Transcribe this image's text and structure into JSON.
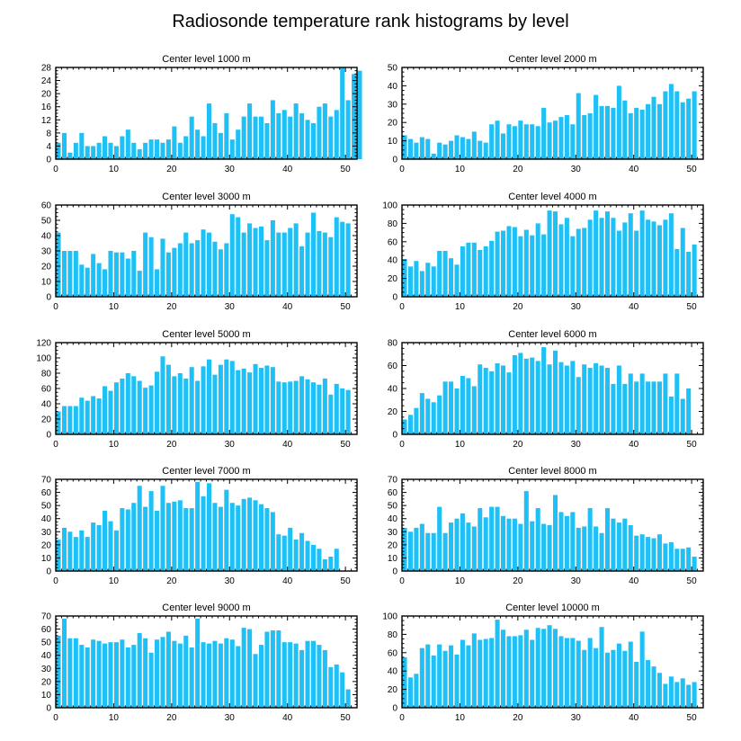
{
  "figure_title": "Radiosonde temperature rank histograms by level",
  "bar_color": "#1ec0f5",
  "chart_data": [
    {
      "type": "bar",
      "title": "Center level 1000 m",
      "xlim": [
        0,
        52
      ],
      "ylim": [
        0,
        28
      ],
      "xticks": [
        0,
        10,
        20,
        30,
        40,
        50
      ],
      "yticks": [
        0,
        4,
        8,
        12,
        16,
        20,
        24,
        28
      ],
      "values": [
        5,
        8,
        2,
        5,
        8,
        4,
        4,
        5,
        7,
        5,
        4,
        7,
        9,
        5,
        3,
        5,
        6,
        6,
        5,
        6,
        10,
        5,
        7,
        13,
        9,
        7,
        17,
        11,
        8,
        14,
        6,
        9,
        13,
        17,
        13,
        13,
        11,
        18,
        14,
        15,
        13,
        17,
        14,
        12,
        11,
        16,
        17,
        13,
        15,
        28,
        18,
        26,
        27
      ]
    },
    {
      "type": "bar",
      "title": "Center level 2000 m",
      "xlim": [
        0,
        52
      ],
      "ylim": [
        0,
        50
      ],
      "xticks": [
        0,
        10,
        20,
        30,
        40,
        50
      ],
      "yticks": [
        0,
        10,
        20,
        30,
        40,
        50
      ],
      "values": [
        13,
        11,
        9,
        12,
        11,
        3,
        9,
        8,
        10,
        13,
        12,
        11,
        15,
        10,
        9,
        19,
        21,
        14,
        19,
        18,
        21,
        19,
        19,
        18,
        28,
        20,
        21,
        23,
        24,
        19,
        36,
        24,
        25,
        35,
        29,
        29,
        28,
        40,
        32,
        25,
        28,
        27,
        30,
        34,
        30,
        37,
        41,
        37,
        31,
        33,
        37
      ]
    },
    {
      "type": "bar",
      "title": "Center level 3000 m",
      "xlim": [
        0,
        52
      ],
      "ylim": [
        0,
        60
      ],
      "xticks": [
        0,
        10,
        20,
        30,
        40,
        50
      ],
      "yticks": [
        0,
        10,
        20,
        30,
        40,
        50,
        60
      ],
      "values": [
        42,
        30,
        30,
        30,
        21,
        19,
        28,
        22,
        18,
        30,
        29,
        29,
        25,
        30,
        17,
        42,
        39,
        18,
        38,
        29,
        32,
        35,
        42,
        35,
        37,
        44,
        42,
        36,
        31,
        35,
        54,
        52,
        42,
        48,
        45,
        46,
        37,
        50,
        42,
        42,
        45,
        48,
        33,
        42,
        55,
        43,
        42,
        39,
        52,
        49,
        48
      ]
    },
    {
      "type": "bar",
      "title": "Center level 4000 m",
      "xlim": [
        0,
        52
      ],
      "ylim": [
        0,
        100
      ],
      "xticks": [
        0,
        10,
        20,
        30,
        40,
        50
      ],
      "yticks": [
        0,
        20,
        40,
        60,
        80,
        100
      ],
      "values": [
        41,
        33,
        39,
        28,
        37,
        33,
        50,
        50,
        42,
        35,
        55,
        59,
        59,
        51,
        55,
        61,
        71,
        72,
        77,
        76,
        66,
        73,
        67,
        80,
        68,
        94,
        93,
        79,
        86,
        66,
        74,
        75,
        84,
        94,
        86,
        93,
        86,
        72,
        81,
        91,
        72,
        94,
        84,
        82,
        78,
        84,
        91,
        52,
        75,
        49,
        57
      ]
    },
    {
      "type": "bar",
      "title": "Center level 5000 m",
      "xlim": [
        0,
        52
      ],
      "ylim": [
        0,
        120
      ],
      "xticks": [
        0,
        10,
        20,
        30,
        40,
        50
      ],
      "yticks": [
        0,
        20,
        40,
        60,
        80,
        100,
        120
      ],
      "values": [
        30,
        37,
        37,
        37,
        48,
        44,
        50,
        47,
        63,
        57,
        68,
        73,
        80,
        76,
        70,
        61,
        64,
        82,
        102,
        91,
        76,
        80,
        73,
        88,
        70,
        89,
        98,
        78,
        91,
        98,
        96,
        84,
        86,
        81,
        92,
        87,
        90,
        88,
        69,
        68,
        69,
        70,
        76,
        72,
        68,
        65,
        73,
        52,
        66,
        60,
        58
      ]
    },
    {
      "type": "bar",
      "title": "Center level 6000 m",
      "xlim": [
        0,
        52
      ],
      "ylim": [
        0,
        80
      ],
      "xticks": [
        0,
        10,
        20,
        30,
        40,
        50
      ],
      "yticks": [
        0,
        20,
        40,
        60,
        80
      ],
      "values": [
        13,
        17,
        23,
        36,
        31,
        28,
        34,
        46,
        46,
        40,
        51,
        49,
        42,
        61,
        58,
        55,
        62,
        60,
        54,
        69,
        71,
        66,
        67,
        64,
        76,
        61,
        73,
        63,
        60,
        64,
        50,
        61,
        58,
        62,
        60,
        58,
        44,
        60,
        44,
        53,
        46,
        53,
        46,
        46,
        46,
        53,
        33,
        53,
        31,
        40
      ]
    },
    {
      "type": "bar",
      "title": "Center level 7000 m",
      "xlim": [
        0,
        52
      ],
      "ylim": [
        0,
        70
      ],
      "xticks": [
        0,
        10,
        20,
        30,
        40,
        50
      ],
      "yticks": [
        0,
        10,
        20,
        30,
        40,
        50,
        60,
        70
      ],
      "values": [
        24,
        33,
        30,
        26,
        31,
        26,
        37,
        35,
        46,
        38,
        31,
        48,
        47,
        52,
        65,
        49,
        61,
        46,
        65,
        52,
        53,
        54,
        48,
        48,
        68,
        57,
        67,
        52,
        49,
        62,
        52,
        50,
        55,
        56,
        54,
        51,
        48,
        45,
        28,
        27,
        33,
        24,
        29,
        23,
        20,
        17,
        9,
        11,
        17
      ]
    },
    {
      "type": "bar",
      "title": "Center level 8000 m",
      "xlim": [
        0,
        52
      ],
      "ylim": [
        0,
        70
      ],
      "xticks": [
        0,
        10,
        20,
        30,
        40,
        50
      ],
      "yticks": [
        0,
        10,
        20,
        30,
        40,
        50,
        60,
        70
      ],
      "values": [
        33,
        30,
        33,
        36,
        29,
        29,
        49,
        29,
        37,
        40,
        44,
        37,
        34,
        48,
        41,
        49,
        49,
        42,
        40,
        40,
        36,
        61,
        38,
        48,
        36,
        35,
        58,
        45,
        42,
        45,
        33,
        34,
        48,
        34,
        29,
        48,
        40,
        37,
        40,
        35,
        27,
        28,
        26,
        25,
        28,
        21,
        22,
        17,
        17,
        18,
        11
      ]
    },
    {
      "type": "bar",
      "title": "Center level 9000 m",
      "xlim": [
        0,
        52
      ],
      "ylim": [
        0,
        70
      ],
      "xticks": [
        0,
        10,
        20,
        30,
        40,
        50
      ],
      "yticks": [
        0,
        10,
        20,
        30,
        40,
        50,
        60,
        70
      ],
      "values": [
        55,
        68,
        53,
        53,
        48,
        46,
        52,
        51,
        49,
        50,
        50,
        52,
        46,
        48,
        57,
        53,
        42,
        52,
        54,
        58,
        51,
        49,
        55,
        46,
        68,
        50,
        49,
        51,
        49,
        53,
        52,
        47,
        61,
        60,
        41,
        48,
        58,
        59,
        59,
        50,
        50,
        49,
        44,
        51,
        51,
        48,
        44,
        31,
        33,
        27,
        14
      ]
    },
    {
      "type": "bar",
      "title": "Center level 10000 m",
      "xlim": [
        0,
        52
      ],
      "ylim": [
        0,
        100
      ],
      "xticks": [
        0,
        10,
        20,
        30,
        40,
        50
      ],
      "yticks": [
        0,
        20,
        40,
        60,
        80,
        100
      ],
      "values": [
        55,
        33,
        37,
        65,
        69,
        57,
        69,
        62,
        68,
        58,
        74,
        68,
        81,
        74,
        75,
        76,
        96,
        85,
        78,
        78,
        79,
        85,
        74,
        87,
        86,
        90,
        86,
        78,
        76,
        76,
        73,
        63,
        76,
        65,
        88,
        60,
        63,
        70,
        62,
        72,
        50,
        83,
        52,
        45,
        38,
        26,
        34,
        28,
        32,
        25,
        28
      ]
    }
  ]
}
